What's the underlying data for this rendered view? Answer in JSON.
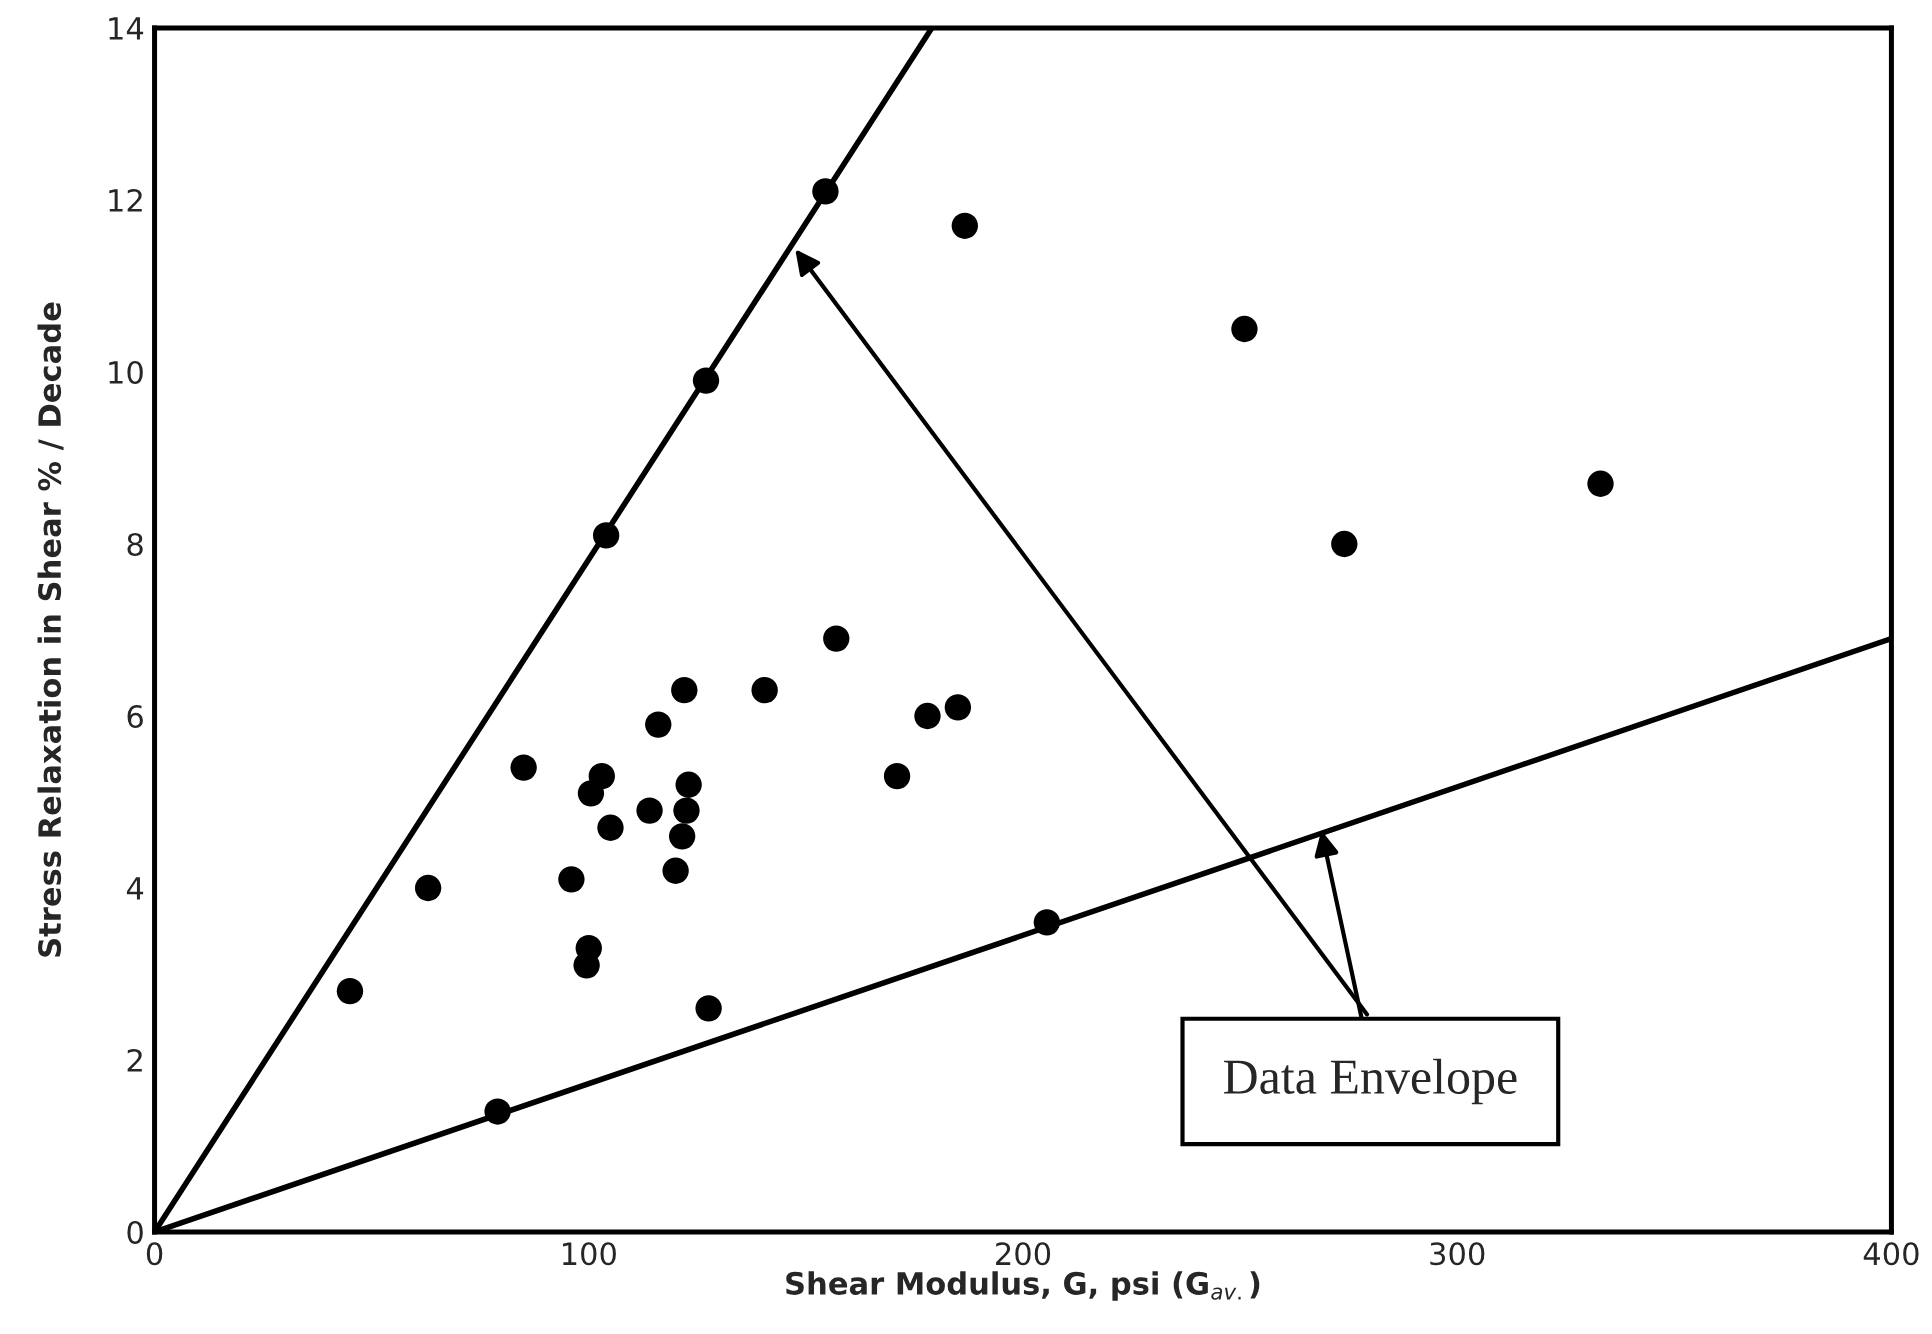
{
  "chart_data": {
    "type": "scatter",
    "xlabel": "Shear Modulus, G, psi (G$_{av.}$)",
    "ylabel": "Stress Relaxation in Shear % / Decade",
    "xlim": [
      0,
      400
    ],
    "ylim": [
      0,
      14
    ],
    "xticks": [
      0,
      100,
      200,
      300,
      400
    ],
    "yticks": [
      0,
      2,
      4,
      6,
      8,
      10,
      12,
      14
    ],
    "grid": false,
    "marker": "circle",
    "annotations": [
      {
        "text": "Data Envelope",
        "x": 268.7,
        "y": 4.67
      }
    ],
    "series": [
      {
        "color": "#000000",
        "x": [
          45,
          63,
          85,
          79,
          96,
          100,
          99.5,
          100.5,
          103,
          105,
          114,
          116,
          120,
          121.5,
          122.5,
          123,
          122,
          127.6,
          140.5,
          171,
          178,
          185,
          157,
          104,
          127,
          154.5,
          186.6,
          251,
          274,
          333,
          205.5
        ],
        "values": [
          2.8,
          4.0,
          5.4,
          1.4,
          4.1,
          3.3,
          3.1,
          5.1,
          5.3,
          4.7,
          4.9,
          5.9,
          4.2,
          4.6,
          4.9,
          5.2,
          6.3,
          2.6,
          6.3,
          5.3,
          6.0,
          6.1,
          6.9,
          8.1,
          9.9,
          12.1,
          11.7,
          10.5,
          8.0,
          8.7,
          3.6
        ]
      },
      {
        "type": "line",
        "color": "#000000",
        "marker": "none",
        "line_style": "solid",
        "x": [
          0,
          179
        ],
        "values": [
          0,
          14
        ]
      },
      {
        "type": "line",
        "color": "#000000",
        "marker": "none",
        "line_style": "solid",
        "x": [
          0,
          400
        ],
        "values": [
          0,
          6.9
        ]
      }
    ]
  }
}
